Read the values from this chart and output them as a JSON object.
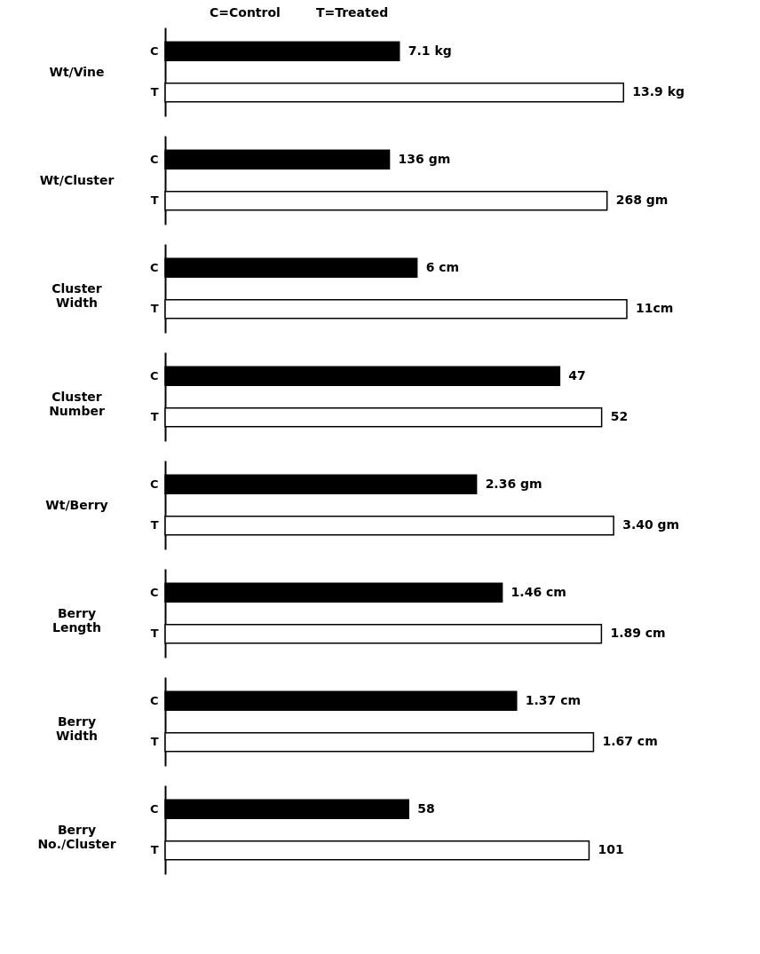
{
  "chart_data": [
    {
      "type": "bar",
      "orientation": "horizontal",
      "annotations": [
        "C=Control",
        "T=Treated"
      ],
      "ylabel": "Wt/Vine",
      "categories": [
        "C",
        "T"
      ],
      "values": [
        7.1,
        13.9
      ],
      "value_labels": [
        "7.1 kg",
        "13.9 kg"
      ],
      "colors": [
        "#000000",
        "#ffffff"
      ]
    },
    {
      "type": "bar",
      "orientation": "horizontal",
      "ylabel": "Wt/Cluster",
      "categories": [
        "C",
        "T"
      ],
      "values": [
        136,
        268
      ],
      "value_labels": [
        "136 gm",
        "268 gm"
      ],
      "colors": [
        "#000000",
        "#ffffff"
      ]
    },
    {
      "type": "bar",
      "orientation": "horizontal",
      "ylabel": "Cluster Width",
      "categories": [
        "C",
        "T"
      ],
      "values": [
        6,
        11
      ],
      "value_labels": [
        "6 cm",
        "11cm"
      ],
      "colors": [
        "#000000",
        "#ffffff"
      ]
    },
    {
      "type": "bar",
      "orientation": "horizontal",
      "ylabel": "Cluster Number",
      "categories": [
        "C",
        "T"
      ],
      "values": [
        47,
        52
      ],
      "value_labels": [
        "47",
        "52"
      ],
      "colors": [
        "#000000",
        "#ffffff"
      ]
    },
    {
      "type": "bar",
      "orientation": "horizontal",
      "ylabel": "Wt/Berry",
      "categories": [
        "C",
        "T"
      ],
      "values": [
        2.36,
        3.4
      ],
      "value_labels": [
        "2.36 gm",
        "3.40 gm"
      ],
      "colors": [
        "#000000",
        "#ffffff"
      ]
    },
    {
      "type": "bar",
      "orientation": "horizontal",
      "ylabel": "Berry Length",
      "categories": [
        "C",
        "T"
      ],
      "values": [
        1.46,
        1.89
      ],
      "value_labels": [
        "1.46 cm",
        "1.89 cm"
      ],
      "colors": [
        "#000000",
        "#ffffff"
      ]
    },
    {
      "type": "bar",
      "orientation": "horizontal",
      "ylabel": "Berry Width",
      "categories": [
        "C",
        "T"
      ],
      "values": [
        1.37,
        1.67
      ],
      "value_labels": [
        "1.37 cm",
        "1.67 cm"
      ],
      "colors": [
        "#000000",
        "#ffffff"
      ]
    },
    {
      "type": "bar",
      "orientation": "horizontal",
      "ylabel": "Berry No./Cluster",
      "categories": [
        "C",
        "T"
      ],
      "values": [
        58,
        101
      ],
      "value_labels": [
        "58",
        "101"
      ],
      "colors": [
        "#000000",
        "#ffffff"
      ]
    }
  ]
}
